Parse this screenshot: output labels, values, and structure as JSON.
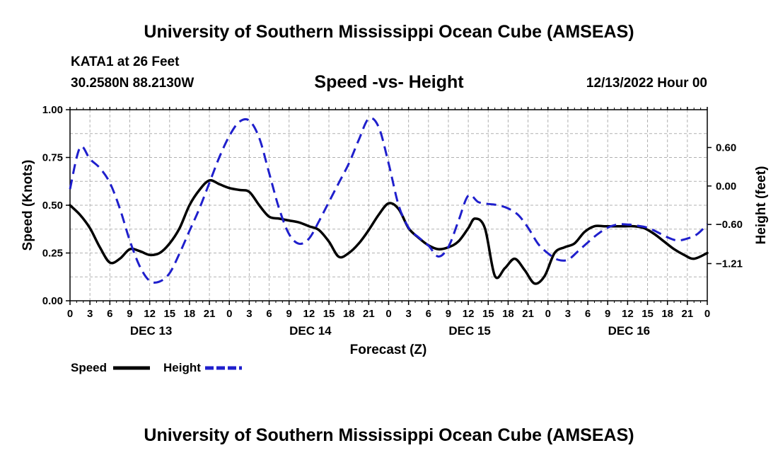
{
  "header": {
    "title": "University of Southern Mississippi Ocean Cube (AMSEAS)",
    "station": "KATA1 at 26 Feet",
    "location": "30.2580N  88.2130W",
    "chart_title": "Speed -vs- Height",
    "date": "12/13/2022 Hour 00"
  },
  "footer": {
    "title": "University of Southern Mississippi Ocean Cube (AMSEAS)"
  },
  "colors": {
    "speed": "#000000",
    "height": "#1f1fcc",
    "grid": "#b0b0b0"
  },
  "chart_data": {
    "type": "line",
    "title": "Speed -vs- Height",
    "xlabel": "Forecast (Z)",
    "ylabel": "Speed (Knots)",
    "y2label": "Height (feet)",
    "xlim": [
      0,
      96
    ],
    "ylim": [
      0,
      1.0
    ],
    "y2lim": [
      -1.79,
      1.19
    ],
    "x_ticks": [
      0,
      3,
      6,
      9,
      12,
      15,
      18,
      21,
      24,
      27,
      30,
      33,
      36,
      39,
      42,
      45,
      48,
      51,
      54,
      57,
      60,
      63,
      66,
      69,
      72,
      75,
      78,
      81,
      84,
      87,
      90,
      93,
      96
    ],
    "x_tick_labels": [
      "0",
      "3",
      "6",
      "9",
      "12",
      "15",
      "18",
      "21",
      "0",
      "3",
      "6",
      "9",
      "12",
      "15",
      "18",
      "21",
      "0",
      "3",
      "6",
      "9",
      "12",
      "15",
      "18",
      "21",
      "0",
      "3",
      "6",
      "9",
      "12",
      "15",
      "18",
      "21",
      "0"
    ],
    "day_labels": [
      {
        "x": 12,
        "label": "DEC 13"
      },
      {
        "x": 36,
        "label": "DEC 14"
      },
      {
        "x": 60,
        "label": "DEC 15"
      },
      {
        "x": 84,
        "label": "DEC 16"
      }
    ],
    "y_ticks": [
      0.0,
      0.25,
      0.5,
      0.75,
      1.0
    ],
    "y_tick_labels": [
      "0.00",
      "0.25",
      "0.50",
      "0.75",
      "1.00"
    ],
    "y2_ticks": [
      0.6,
      0.0,
      -0.6,
      -1.21
    ],
    "y2_tick_labels": [
      "0.60",
      "0.00",
      "−0.60",
      "−1.21"
    ],
    "legend": [
      {
        "name": "Speed",
        "style": "solid"
      },
      {
        "name": "Height",
        "style": "dashed"
      }
    ],
    "series": [
      {
        "name": "Speed",
        "axis": "left",
        "x": [
          0,
          1.5,
          3,
          4.5,
          6,
          7.5,
          9,
          10.5,
          12,
          13.5,
          15,
          16.5,
          18,
          19.5,
          21,
          22.5,
          24,
          25.5,
          27,
          28.5,
          30,
          31.5,
          33,
          34.5,
          36,
          37.5,
          39,
          40.5,
          42,
          43.5,
          45,
          46.5,
          48,
          49.5,
          51,
          52.5,
          54,
          55.5,
          57,
          58.5,
          60,
          61,
          62.5,
          64,
          65.5,
          67,
          68.5,
          70,
          71.5,
          73,
          74.5,
          76,
          77.5,
          79,
          80.5,
          82,
          83.5,
          85,
          86.5,
          88,
          89.5,
          91,
          92.5,
          94,
          96
        ],
        "values": [
          0.5,
          0.45,
          0.38,
          0.28,
          0.2,
          0.22,
          0.27,
          0.26,
          0.24,
          0.25,
          0.3,
          0.38,
          0.5,
          0.58,
          0.63,
          0.61,
          0.59,
          0.58,
          0.57,
          0.5,
          0.44,
          0.43,
          0.42,
          0.41,
          0.39,
          0.37,
          0.31,
          0.23,
          0.25,
          0.3,
          0.37,
          0.45,
          0.51,
          0.48,
          0.38,
          0.33,
          0.29,
          0.27,
          0.28,
          0.31,
          0.38,
          0.43,
          0.38,
          0.13,
          0.17,
          0.22,
          0.16,
          0.09,
          0.13,
          0.25,
          0.28,
          0.3,
          0.36,
          0.39,
          0.39,
          0.39,
          0.39,
          0.39,
          0.38,
          0.35,
          0.31,
          0.27,
          0.24,
          0.22,
          0.25
        ]
      },
      {
        "name": "Height",
        "axis": "right",
        "x": [
          0,
          1.5,
          3,
          4.5,
          6,
          7.5,
          9,
          10.5,
          12,
          13.5,
          15,
          16.5,
          18,
          19.5,
          21,
          22.5,
          24,
          25.5,
          27,
          28.5,
          30,
          31.5,
          33,
          34.5,
          36,
          37.5,
          39,
          40.5,
          42,
          43.5,
          45,
          46.5,
          48,
          49.5,
          51,
          52.5,
          54,
          55.5,
          57,
          58.5,
          60,
          61.5,
          63,
          64.5,
          66,
          67.5,
          69,
          70.5,
          72,
          73.5,
          75,
          76.5,
          78,
          79.5,
          81,
          82.5,
          84,
          85.5,
          87,
          88.5,
          90,
          91.5,
          93,
          94.5,
          96
        ],
        "values": [
          -0.05,
          0.6,
          0.42,
          0.28,
          0.05,
          -0.35,
          -0.85,
          -1.25,
          -1.48,
          -1.49,
          -1.36,
          -1.05,
          -0.7,
          -0.35,
          0.05,
          0.45,
          0.78,
          1.0,
          1.02,
          0.75,
          0.2,
          -0.35,
          -0.75,
          -0.9,
          -0.82,
          -0.55,
          -0.25,
          0.05,
          0.35,
          0.72,
          1.05,
          0.92,
          0.35,
          -0.3,
          -0.65,
          -0.8,
          -0.93,
          -1.1,
          -0.95,
          -0.55,
          -0.15,
          -0.25,
          -0.28,
          -0.3,
          -0.35,
          -0.45,
          -0.65,
          -0.9,
          -1.05,
          -1.15,
          -1.15,
          -1.02,
          -0.88,
          -0.75,
          -0.65,
          -0.6,
          -0.6,
          -0.62,
          -0.65,
          -0.72,
          -0.8,
          -0.85,
          -0.82,
          -0.75,
          -0.6
        ]
      }
    ]
  }
}
